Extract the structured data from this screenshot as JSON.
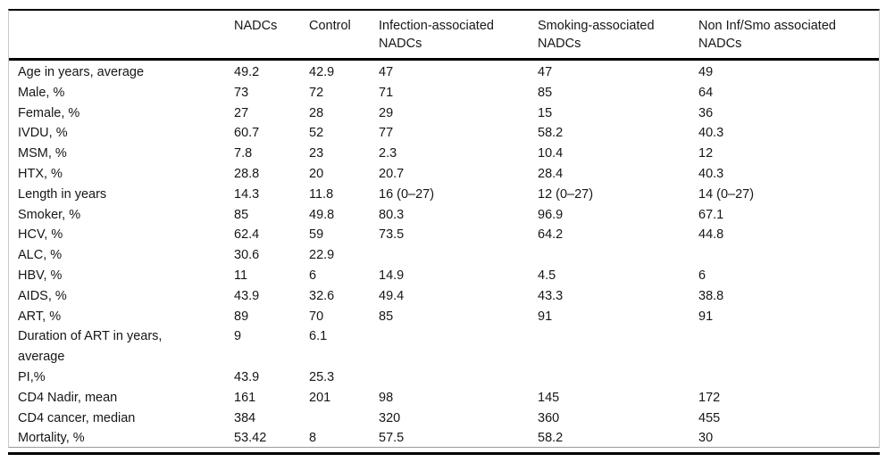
{
  "colors": {
    "background": "#ffffff",
    "text": "#161616",
    "rule": "#000000",
    "figure_border": "#c9c9c9"
  },
  "table": {
    "columns": [
      "",
      "NADCs",
      "Control",
      "Infection-associated NADCs",
      "Smoking-associated NADCs",
      "Non Inf/Smo associated NADCs"
    ],
    "rows": [
      {
        "label": "Age in years, average",
        "values": [
          "49.2",
          "42.9",
          "47",
          "47",
          "49"
        ]
      },
      {
        "label": "Male, %",
        "values": [
          "73",
          "72",
          "71",
          "85",
          "64"
        ]
      },
      {
        "label": "Female, %",
        "values": [
          "27",
          "28",
          "29",
          "15",
          "36"
        ]
      },
      {
        "label": "IVDU, %",
        "values": [
          "60.7",
          "52",
          "77",
          "58.2",
          "40.3"
        ]
      },
      {
        "label": "MSM, %",
        "values": [
          "7.8",
          "23",
          "2.3",
          "10.4",
          "12"
        ]
      },
      {
        "label": "HTX, %",
        "values": [
          "28.8",
          "20",
          "20.7",
          "28.4",
          "40.3"
        ]
      },
      {
        "label": "Length in years",
        "values": [
          "14.3",
          "11.8",
          "16 (0–27)",
          "12 (0–27)",
          "14 (0–27)"
        ]
      },
      {
        "label": "Smoker, %",
        "values": [
          "85",
          "49.8",
          "80.3",
          "96.9",
          "67.1"
        ]
      },
      {
        "label": "HCV, %",
        "values": [
          "62.4",
          "59",
          "73.5",
          "64.2",
          "44.8"
        ]
      },
      {
        "label": "ALC, %",
        "values": [
          "30.6",
          "22.9",
          "",
          "",
          ""
        ]
      },
      {
        "label": "HBV, %",
        "values": [
          "11",
          "6",
          "14.9",
          "4.5",
          "6"
        ]
      },
      {
        "label": "AIDS, %",
        "values": [
          "43.9",
          "32.6",
          "49.4",
          "43.3",
          "38.8"
        ]
      },
      {
        "label": "ART, %",
        "values": [
          "89",
          "70",
          "85",
          "91",
          "91"
        ]
      },
      {
        "label": "Duration of ART in years, average",
        "values": [
          "9",
          "6.1",
          "",
          "",
          ""
        ]
      },
      {
        "label": "PI,%",
        "values": [
          "43.9",
          "25.3",
          "",
          "",
          ""
        ]
      },
      {
        "label": "CD4 Nadir, mean",
        "values": [
          "161",
          "201",
          "98",
          "145",
          "172"
        ]
      },
      {
        "label": "CD4 cancer, median",
        "values": [
          "384",
          "",
          "320",
          "360",
          "455"
        ]
      },
      {
        "label": "Mortality, %",
        "values": [
          "53.42",
          "8",
          "57.5",
          "58.2",
          "30"
        ]
      }
    ]
  }
}
